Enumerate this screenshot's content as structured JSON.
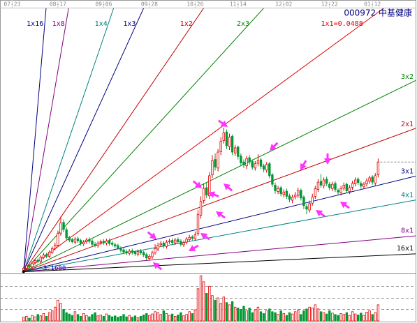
{
  "chart_data": {
    "type": "candlestick",
    "title": "000972 中基健康",
    "xlim": [
      -8,
      137.1
    ],
    "ylim": [
      3.12,
      9.27
    ],
    "xticks": [
      {
        "value": -4,
        "label": "07-23"
      },
      {
        "value": 12,
        "label": "08-17"
      },
      {
        "value": 28,
        "label": "09-06"
      },
      {
        "value": 44,
        "label": "09-28"
      },
      {
        "value": 60,
        "label": "10-26"
      },
      {
        "value": 75,
        "label": "11-14"
      },
      {
        "value": 91,
        "label": "12-02"
      },
      {
        "value": 107,
        "label": "12-22"
      },
      {
        "value": 122,
        "label": "01-12"
      }
    ],
    "up_color": "#e00000",
    "down_color": "#009933",
    "open": [
      3.2,
      3.24,
      3.31,
      3.27,
      3.37,
      3.43,
      3.4,
      3.49,
      3.56,
      3.52,
      3.61,
      3.7,
      3.78,
      4.06,
      4.31,
      4.14,
      3.96,
      3.91,
      3.85,
      3.93,
      3.89,
      3.81,
      3.86,
      3.91,
      3.88,
      3.8,
      3.77,
      3.84,
      3.87,
      3.83,
      3.89,
      3.83,
      3.79,
      3.77,
      3.71,
      3.67,
      3.63,
      3.59,
      3.65,
      3.62,
      3.57,
      3.64,
      3.61,
      3.56,
      3.47,
      3.51,
      3.61,
      3.69,
      3.79,
      3.83,
      3.75,
      3.86,
      3.89,
      3.83,
      3.91,
      3.87,
      3.79,
      3.85,
      3.91,
      3.97,
      3.93,
      4.05,
      4.48,
      4.82,
      5.12,
      4.93,
      5.42,
      5.78,
      5.58,
      5.96,
      6.22,
      6.42,
      6.08,
      6.32,
      5.93,
      6.07,
      5.86,
      5.72,
      5.63,
      5.82,
      5.73,
      5.58,
      5.69,
      5.77,
      5.63,
      5.53,
      5.68,
      5.42,
      5.18,
      5.03,
      5.12,
      4.96,
      5.04,
      4.93,
      4.83,
      4.91,
      4.94,
      5.06,
      4.9,
      4.68,
      4.6,
      4.76,
      4.92,
      5.08,
      5.27,
      5.16,
      5.32,
      5.2,
      5.1,
      5.22,
      5.06,
      5.0,
      5.11,
      5.2,
      5.03,
      5.13,
      5.21,
      5.32,
      5.22,
      5.15,
      5.21,
      5.27,
      5.37,
      5.23,
      5.42
    ],
    "high": [
      3.28,
      3.34,
      3.35,
      3.4,
      3.46,
      3.47,
      3.54,
      3.6,
      3.6,
      3.66,
      3.75,
      3.84,
      4.12,
      4.45,
      4.38,
      4.2,
      4.0,
      3.95,
      3.97,
      3.98,
      3.93,
      3.9,
      3.95,
      3.96,
      3.92,
      3.85,
      3.88,
      3.91,
      3.92,
      3.93,
      3.94,
      3.88,
      3.84,
      3.81,
      3.75,
      3.71,
      3.68,
      3.69,
      3.7,
      3.66,
      3.68,
      3.69,
      3.65,
      3.6,
      3.57,
      3.65,
      3.8,
      3.84,
      3.88,
      3.88,
      3.9,
      3.93,
      3.94,
      3.95,
      3.96,
      3.92,
      3.89,
      3.97,
      4.02,
      4.01,
      4.1,
      4.6,
      4.92,
      5.22,
      5.25,
      5.48,
      5.88,
      5.92,
      6.02,
      6.3,
      6.52,
      6.48,
      6.38,
      6.36,
      6.12,
      6.1,
      5.92,
      5.78,
      5.86,
      5.88,
      5.78,
      5.74,
      5.9,
      5.82,
      5.68,
      5.72,
      5.72,
      5.46,
      5.24,
      5.16,
      5.16,
      5.08,
      5.1,
      4.98,
      4.96,
      5.02,
      5.12,
      5.1,
      4.94,
      4.74,
      4.82,
      4.98,
      5.16,
      5.32,
      5.44,
      5.36,
      5.38,
      5.25,
      5.26,
      5.27,
      5.1,
      5.16,
      5.24,
      5.24,
      5.18,
      5.28,
      5.36,
      5.36,
      5.27,
      5.25,
      5.34,
      5.4,
      5.41,
      5.46,
      5.8
    ],
    "low": [
      3.16,
      3.2,
      3.24,
      3.23,
      3.33,
      3.36,
      3.36,
      3.45,
      3.48,
      3.48,
      3.57,
      3.66,
      3.74,
      4.0,
      4.08,
      3.9,
      3.85,
      3.82,
      3.8,
      3.83,
      3.77,
      3.76,
      3.81,
      3.82,
      3.75,
      3.73,
      3.72,
      3.79,
      3.79,
      3.78,
      3.77,
      3.75,
      3.71,
      3.67,
      3.61,
      3.57,
      3.55,
      3.54,
      3.56,
      3.53,
      3.52,
      3.55,
      3.5,
      3.43,
      3.42,
      3.46,
      3.56,
      3.64,
      3.74,
      3.71,
      3.7,
      3.81,
      3.79,
      3.78,
      3.81,
      3.75,
      3.74,
      3.8,
      3.86,
      3.89,
      3.88,
      4.0,
      4.4,
      4.75,
      4.88,
      4.86,
      5.35,
      5.52,
      5.5,
      5.88,
      6.15,
      6.02,
      6.0,
      5.88,
      5.86,
      5.78,
      5.64,
      5.58,
      5.56,
      5.66,
      5.54,
      5.52,
      5.62,
      5.56,
      5.48,
      5.47,
      5.34,
      5.14,
      4.98,
      4.97,
      4.92,
      4.9,
      4.86,
      4.78,
      4.76,
      4.85,
      4.88,
      4.82,
      4.62,
      4.5,
      4.54,
      4.7,
      4.86,
      5.02,
      5.12,
      5.1,
      5.16,
      5.06,
      5.04,
      5.02,
      4.96,
      4.94,
      5.05,
      4.99,
      4.97,
      5.07,
      5.15,
      5.18,
      5.1,
      5.09,
      5.15,
      5.21,
      5.19,
      5.17,
      5.36
    ],
    "close": [
      3.24,
      3.3,
      3.28,
      3.36,
      3.42,
      3.4,
      3.5,
      3.55,
      3.52,
      3.62,
      3.7,
      3.78,
      4.05,
      4.3,
      4.15,
      3.95,
      3.9,
      3.86,
      3.92,
      3.88,
      3.82,
      3.85,
      3.9,
      3.87,
      3.8,
      3.78,
      3.83,
      3.86,
      3.84,
      3.88,
      3.82,
      3.8,
      3.76,
      3.72,
      3.66,
      3.62,
      3.6,
      3.64,
      3.61,
      3.58,
      3.63,
      3.6,
      3.55,
      3.48,
      3.52,
      3.6,
      3.7,
      3.78,
      3.82,
      3.76,
      3.85,
      3.88,
      3.84,
      3.9,
      3.86,
      3.8,
      3.84,
      3.92,
      3.96,
      3.94,
      4.02,
      4.5,
      4.8,
      5.1,
      4.95,
      5.4,
      5.75,
      5.6,
      5.95,
      6.2,
      6.4,
      6.1,
      6.3,
      5.95,
      6.05,
      5.85,
      5.7,
      5.65,
      5.8,
      5.72,
      5.6,
      5.68,
      5.75,
      5.62,
      5.55,
      5.66,
      5.4,
      5.2,
      5.05,
      5.1,
      4.98,
      5.02,
      4.92,
      4.85,
      4.9,
      4.95,
      5.05,
      4.88,
      4.7,
      4.62,
      4.75,
      4.9,
      5.1,
      5.25,
      5.18,
      5.3,
      5.22,
      5.12,
      5.2,
      5.08,
      5.02,
      5.1,
      5.18,
      5.05,
      5.12,
      5.22,
      5.3,
      5.24,
      5.16,
      5.2,
      5.28,
      5.35,
      5.25,
      5.4,
      5.72
    ],
    "volume": {
      "ylim": [
        0,
        100
      ],
      "values": [
        8,
        10,
        6,
        12,
        9,
        14,
        11,
        16,
        10,
        18,
        22,
        30,
        45,
        38,
        25,
        18,
        15,
        12,
        20,
        14,
        10,
        16,
        12,
        9,
        14,
        18,
        11,
        13,
        10,
        15,
        12,
        9,
        11,
        8,
        10,
        14,
        9,
        12,
        8,
        11,
        7,
        10,
        13,
        16,
        12,
        15,
        20,
        18,
        14,
        22,
        16,
        12,
        15,
        10,
        13,
        18,
        11,
        14,
        20,
        16,
        24,
        70,
        98,
        85,
        60,
        75,
        55,
        45,
        50,
        38,
        52,
        40,
        35,
        42,
        30,
        28,
        25,
        32,
        22,
        28,
        18,
        24,
        30,
        20,
        16,
        22,
        26,
        20,
        18,
        14,
        22,
        16,
        12,
        18,
        15,
        20,
        24,
        14,
        22,
        26,
        30,
        28,
        35,
        26,
        20,
        18,
        15,
        22,
        17,
        14,
        12,
        16,
        14,
        18,
        12,
        20,
        15,
        13,
        17,
        12,
        19,
        22,
        14,
        18,
        35
      ]
    },
    "gann_fan": {
      "origin_x": 0,
      "origin": {
        "value": 3.16,
        "label": "3.1600"
      },
      "unit": 0.0488,
      "lines": [
        {
          "label": "1x16",
          "color": "#000080"
        },
        {
          "label": "1x8",
          "color": "#800080"
        },
        {
          "label": "1x4",
          "color": "#008080"
        },
        {
          "label": "1x3",
          "color": "#000080"
        },
        {
          "label": "1x2",
          "color": "#c00000"
        },
        {
          "label": "2x3",
          "color": "#008000"
        },
        {
          "label": "1x1=0.0488",
          "color": "#e00000"
        },
        {
          "label": "3x2",
          "color": "#008000"
        },
        {
          "label": "2x1",
          "color": "#c00000"
        },
        {
          "label": "3x1",
          "color": "#000080"
        },
        {
          "label": "4x1",
          "color": "#008080"
        },
        {
          "label": "8x1",
          "color": "#800080"
        },
        {
          "label": "16x1",
          "color": "#000000"
        }
      ]
    }
  }
}
